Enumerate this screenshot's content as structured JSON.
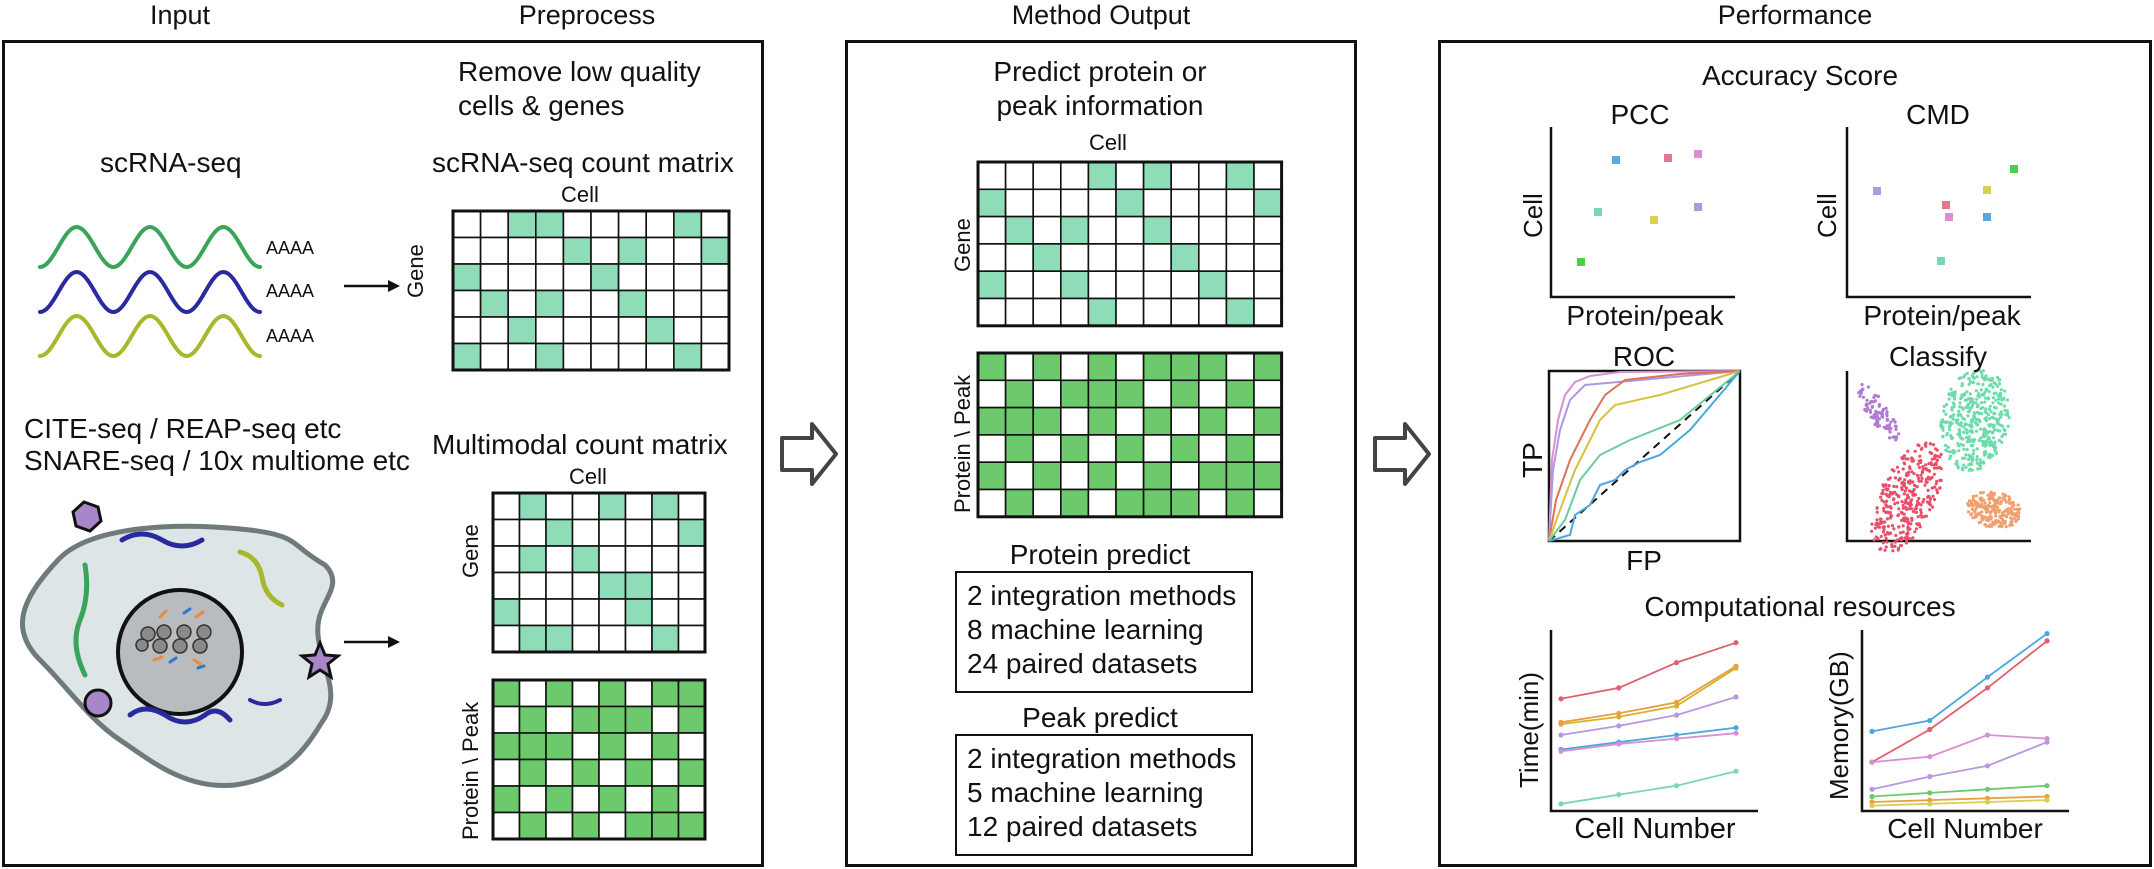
{
  "headers": {
    "input": "Input",
    "preprocess": "Preprocess",
    "method_output": "Method Output",
    "performance": "Performance"
  },
  "input": {
    "scrna_label": "scRNA-seq",
    "poly_a": [
      "AAAA",
      "AAAA",
      "AAAA"
    ],
    "cite_line1": "CITE-seq / REAP-seq etc",
    "cite_line2": "SNARE-seq / 10x multiome etc"
  },
  "preprocess": {
    "remove_line1": "Remove low quality",
    "remove_line2": "cells & genes",
    "scrna_matrix_title": "scRNA-seq count matrix",
    "multimodal_title": "Multimodal count matrix",
    "cell": "Cell",
    "gene": "Gene",
    "protein_peak": "Protein \\ Peak"
  },
  "method_output": {
    "predict_line1": "Predict protein or",
    "predict_line2": "peak information",
    "cell": "Cell",
    "gene": "Gene",
    "protein_peak": "Protein \\ Peak",
    "protein_predict": {
      "title": "Protein predict",
      "lines": [
        "2 integration methods",
        "8 machine learning",
        "24 paired datasets"
      ]
    },
    "peak_predict": {
      "title": "Peak predict",
      "lines": [
        "2 integration methods",
        "5 machine learning",
        "12 paired datasets"
      ]
    }
  },
  "performance": {
    "accuracy_title": "Accuracy Score",
    "pcc": {
      "title": "PCC",
      "ylabel": "Cell",
      "xlabel": "Protein/peak"
    },
    "cmd": {
      "title": "CMD",
      "ylabel": "Cell",
      "xlabel": "Protein/peak"
    },
    "roc": {
      "title": "ROC",
      "ylabel": "TP",
      "xlabel": "FP"
    },
    "classify": {
      "title": "Classify"
    },
    "resources_title": "Computational resources",
    "time": {
      "ylabel": "Time(min)",
      "xlabel": "Cell Number"
    },
    "memory": {
      "ylabel": "Memory(GB)",
      "xlabel": "Cell Number"
    }
  },
  "colors": {
    "light_green": "#8fdcb8",
    "green": "#6cc96c",
    "blue_wave": "#2a2aa0",
    "green_wave": "#3aa45a",
    "yellow_wave": "#a8b82a"
  }
}
